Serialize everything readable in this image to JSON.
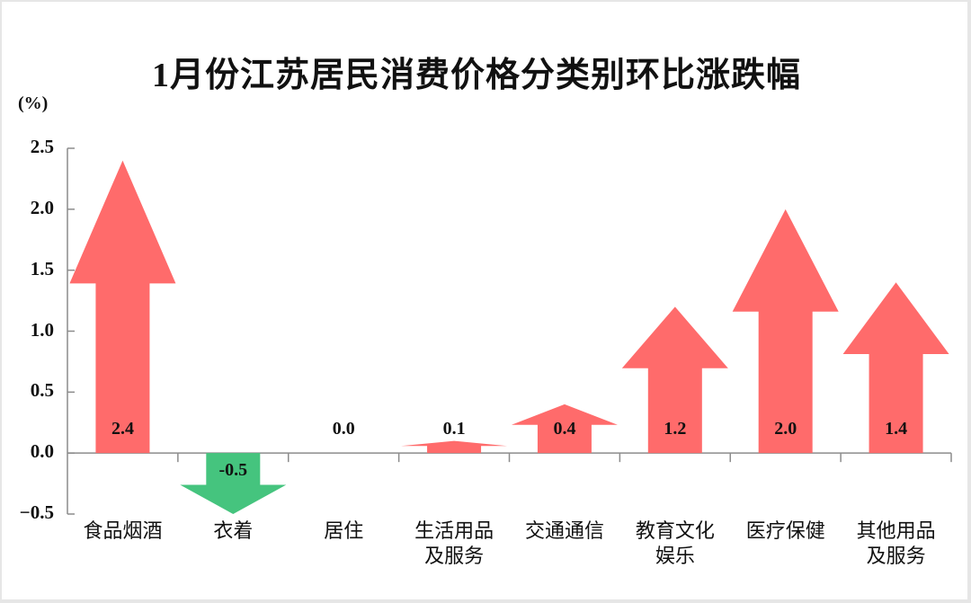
{
  "chart_data": {
    "type": "bar",
    "title": "1月份江苏居民消费价格分类别环比涨跌幅",
    "ylabel": "(%)",
    "xlabel": "",
    "ylim": [
      -0.5,
      2.5
    ],
    "yticks": [
      "2.5",
      "2.0",
      "1.5",
      "1.0",
      "0.5",
      "0.0",
      "−0.5"
    ],
    "grid": false,
    "legend": null,
    "marker": "arrow",
    "categories": [
      "食品烟酒",
      "衣着",
      "居住",
      "生活用品及服务",
      "交通通信",
      "教育文化娱乐",
      "医疗保健",
      "其他用品及服务"
    ],
    "values": [
      2.4,
      -0.5,
      0.0,
      0.1,
      0.4,
      1.2,
      2.0,
      1.4
    ],
    "value_labels": [
      "2.4",
      "-0.5",
      "0.0",
      "0.1",
      "0.4",
      "1.2",
      "2.0",
      "1.4"
    ],
    "category_lines": [
      [
        "食品烟酒"
      ],
      [
        "衣着"
      ],
      [
        "居住"
      ],
      [
        "生活用品",
        "及服务"
      ],
      [
        "交通通信"
      ],
      [
        "教育文化",
        "娱乐"
      ],
      [
        "医疗保健"
      ],
      [
        "其他用品",
        "及服务"
      ]
    ],
    "colors": {
      "positive": "#FF6B6B",
      "negative": "#45C47E",
      "axis": "#8c8c8c"
    }
  }
}
